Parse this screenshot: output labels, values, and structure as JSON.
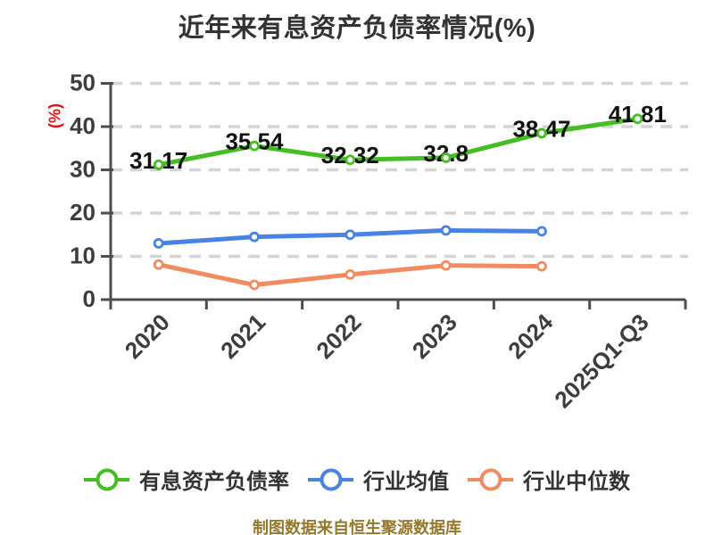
{
  "chart_data": {
    "type": "line",
    "title": "近年来有息资产负债率情况(%)",
    "ylabel": "(%)",
    "ylim": [
      0,
      50
    ],
    "yticks": [
      0,
      10,
      20,
      30,
      40,
      50
    ],
    "grid": true,
    "legend_position": "bottom",
    "categories": [
      "2020",
      "2021",
      "2022",
      "2023",
      "2024",
      "2025Q1-Q3"
    ],
    "series": [
      {
        "name": "有息资产负债率",
        "color": "#45be23",
        "values": [
          31.17,
          35.54,
          32.32,
          32.8,
          38.47,
          41.81
        ],
        "labels": [
          "31.17",
          "35.54",
          "32.32",
          "32.8",
          "38.47",
          "41.81"
        ]
      },
      {
        "name": "行业均值",
        "color": "#4a82e4",
        "values": [
          13.0,
          14.5,
          15.0,
          16.0,
          15.8
        ]
      },
      {
        "name": "行业中位数",
        "color": "#f28b60",
        "values": [
          8.1,
          3.4,
          5.8,
          7.9,
          7.7
        ]
      }
    ]
  },
  "caption": "制图数据来自恒生聚源数据库",
  "colors": {
    "title": "#333333",
    "axis_line": "#4d4d4d",
    "tick_label": "#3d3d3d",
    "grid_line": "#d4d4d4",
    "data_label": "#111111",
    "y_unit_label": "#e01414",
    "caption": "#96782a",
    "marker_fill": "#ffffff"
  }
}
